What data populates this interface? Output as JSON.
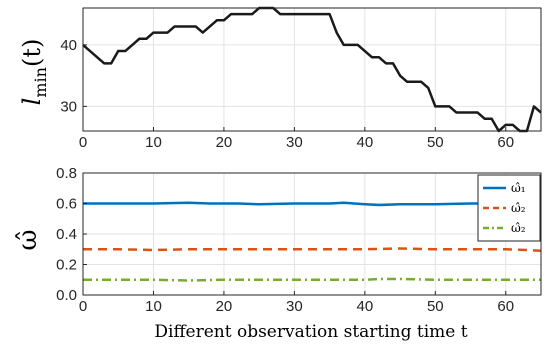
{
  "chart_data": [
    {
      "type": "line",
      "ylabel": "l_min(t)",
      "xlim": [
        0,
        65
      ],
      "ylim": [
        26,
        46
      ],
      "xticks": [
        0,
        10,
        20,
        30,
        40,
        50,
        60
      ],
      "yticks": [
        30,
        40
      ],
      "grid": true,
      "series": [
        {
          "color": "#1a1a1a",
          "x": [
            0,
            1,
            2,
            3,
            4,
            5,
            6,
            7,
            8,
            9,
            10,
            11,
            12,
            13,
            14,
            15,
            16,
            17,
            18,
            19,
            20,
            21,
            22,
            23,
            24,
            25,
            26,
            27,
            28,
            29,
            30,
            31,
            32,
            33,
            34,
            35,
            36,
            37,
            38,
            39,
            40,
            41,
            42,
            43,
            44,
            45,
            46,
            47,
            48,
            49,
            50,
            51,
            52,
            53,
            54,
            55,
            56,
            57,
            58,
            59,
            60,
            61,
            62,
            63,
            64,
            65
          ],
          "y": [
            40,
            39,
            38,
            37,
            37,
            39,
            39,
            40,
            41,
            41,
            42,
            42,
            42,
            43,
            43,
            43,
            43,
            42,
            43,
            44,
            44,
            45,
            45,
            45,
            45,
            46,
            46,
            46,
            45,
            45,
            45,
            45,
            45,
            45,
            45,
            45,
            42,
            40,
            40,
            40,
            39,
            38,
            38,
            37,
            37,
            35,
            34,
            34,
            34,
            33,
            30,
            30,
            30,
            29,
            29,
            29,
            29,
            28,
            28,
            26,
            27,
            27,
            26,
            26,
            30,
            29
          ]
        }
      ]
    },
    {
      "type": "line",
      "xlabel": "Different observation starting time t",
      "ylabel": "ω̂",
      "xlim": [
        0,
        65
      ],
      "ylim": [
        0,
        0.8
      ],
      "xticks": [
        0,
        10,
        20,
        30,
        40,
        50,
        60
      ],
      "yticks": [
        0,
        0.2,
        0.4,
        0.6,
        0.8
      ],
      "grid": true,
      "legend": "top-right",
      "series": [
        {
          "name": "ω̂₁",
          "color": "#0072bd",
          "dash": "solid",
          "x": [
            0,
            5,
            10,
            15,
            18,
            22,
            25,
            30,
            35,
            37,
            40,
            42,
            45,
            50,
            55,
            60,
            65
          ],
          "y": [
            0.6,
            0.6,
            0.6,
            0.605,
            0.6,
            0.6,
            0.595,
            0.6,
            0.6,
            0.605,
            0.595,
            0.59,
            0.595,
            0.595,
            0.6,
            0.6,
            0.605
          ]
        },
        {
          "name": "ω̂₂",
          "color": "#d95319",
          "dash": "dashed",
          "x": [
            0,
            5,
            10,
            15,
            20,
            25,
            30,
            35,
            40,
            45,
            50,
            55,
            60,
            63,
            65
          ],
          "y": [
            0.3,
            0.3,
            0.295,
            0.3,
            0.3,
            0.3,
            0.3,
            0.3,
            0.3,
            0.305,
            0.3,
            0.3,
            0.3,
            0.295,
            0.29
          ]
        },
        {
          "name": "ω̂₂",
          "color": "#77ac30",
          "dash": "dashdot",
          "x": [
            0,
            5,
            10,
            15,
            20,
            25,
            30,
            35,
            40,
            42,
            45,
            50,
            55,
            60,
            65
          ],
          "y": [
            0.1,
            0.1,
            0.1,
            0.095,
            0.1,
            0.1,
            0.1,
            0.1,
            0.1,
            0.105,
            0.105,
            0.1,
            0.1,
            0.1,
            0.1
          ]
        }
      ]
    }
  ]
}
